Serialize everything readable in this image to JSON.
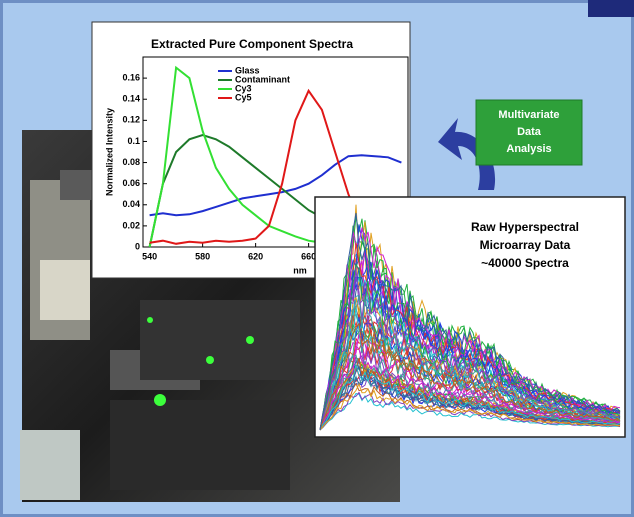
{
  "chart_data": {
    "type": "line",
    "title": "Extracted Pure Component Spectra",
    "xlabel": "nm",
    "ylabel": "Normalized Intensity",
    "x": [
      540,
      550,
      560,
      570,
      580,
      590,
      600,
      610,
      620,
      630,
      640,
      650,
      660,
      670,
      680,
      690,
      700,
      710,
      720,
      730
    ],
    "series": [
      {
        "name": "Glass",
        "color": "#1f2fd0",
        "values": [
          0.03,
          0.032,
          0.03,
          0.031,
          0.034,
          0.038,
          0.042,
          0.046,
          0.048,
          0.05,
          0.052,
          0.055,
          0.06,
          0.068,
          0.078,
          0.086,
          0.087,
          0.086,
          0.085,
          0.08
        ]
      },
      {
        "name": "Contaminant",
        "color": "#1e7a2a",
        "values": [
          0.0,
          0.06,
          0.09,
          0.102,
          0.106,
          0.102,
          0.095,
          0.085,
          0.075,
          0.065,
          0.055,
          0.045,
          0.035,
          0.028,
          0.02,
          0.015,
          0.01,
          0.008,
          0.005,
          0.003
        ]
      },
      {
        "name": "Cy3",
        "color": "#33e033",
        "values": [
          0.0,
          0.06,
          0.17,
          0.16,
          0.11,
          0.075,
          0.055,
          0.04,
          0.03,
          0.02,
          0.015,
          0.01,
          0.006,
          0.004,
          0.002,
          0.001,
          0.0,
          0.0,
          0.0,
          0.0
        ]
      },
      {
        "name": "Cy5",
        "color": "#e01818",
        "values": [
          0.004,
          0.006,
          0.003,
          0.005,
          0.004,
          0.006,
          0.005,
          0.006,
          0.008,
          0.02,
          0.06,
          0.12,
          0.148,
          0.13,
          0.09,
          0.05,
          0.02,
          0.01,
          0.005,
          0.003
        ]
      }
    ],
    "xlim": [
      535,
      735
    ],
    "ylim": [
      0,
      0.18
    ],
    "xticks": [
      540,
      580,
      620,
      660
    ],
    "yticks": [
      0,
      0.02,
      0.04,
      0.06,
      0.08,
      0.1,
      0.12,
      0.14,
      0.16
    ],
    "legend": "top-center"
  },
  "slide": {
    "annotation": [
      "Multivariate",
      "Data",
      "Analysis"
    ],
    "raw_panel": [
      "Raw Hyperspectral",
      "Microarray Data",
      "~40000 Spectra"
    ]
  }
}
